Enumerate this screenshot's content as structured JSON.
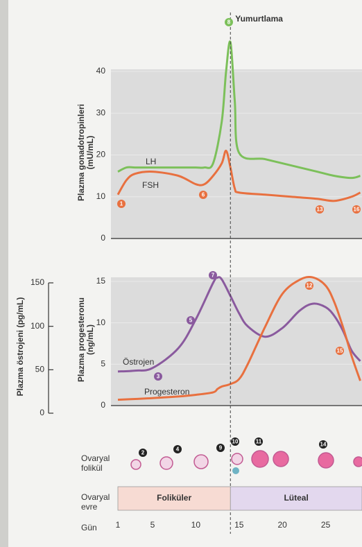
{
  "chart_data": [
    {
      "type": "line",
      "y_label": [
        "Plazma gonadotropinleri",
        "(mU/mL)"
      ],
      "x": [
        1,
        2,
        3,
        5,
        8,
        10,
        11,
        12,
        13,
        13.5,
        14,
        14.5,
        15,
        18,
        21,
        24,
        26,
        28,
        29
      ],
      "xlim": [
        0.2,
        29.2
      ],
      "ylim": [
        0,
        40
      ],
      "yticks": [
        0,
        10,
        20,
        30,
        40
      ],
      "series": [
        {
          "name": "LH",
          "color": "#7cc05a",
          "values": [
            16,
            17,
            17,
            17,
            17,
            17,
            17,
            18,
            28,
            40,
            47,
            33,
            20.5,
            19,
            17.5,
            16,
            15,
            14.5,
            15
          ]
        },
        {
          "name": "FSH",
          "color": "#e8703f",
          "values": [
            10.5,
            14,
            15.5,
            16,
            15,
            13,
            13,
            15,
            18,
            21,
            17,
            12,
            11,
            10.5,
            10,
            9.5,
            9,
            10,
            11
          ]
        }
      ],
      "annotation": {
        "text": "Yumurtlama",
        "x": 14
      },
      "markers": [
        "1",
        "6",
        "8",
        "13",
        "16"
      ]
    },
    {
      "type": "line",
      "y_label": [
        "Plazma progesteronu",
        "(ng/mL)"
      ],
      "y2_label": "Plazma östrojeni (pg/mL)",
      "x": [
        1,
        3,
        5,
        8,
        10,
        12,
        12.5,
        13,
        14,
        15,
        16,
        18,
        20,
        22,
        23.5,
        25,
        26,
        27,
        28,
        29
      ],
      "xlim": [
        0.2,
        29.2
      ],
      "ylim": [
        0,
        15
      ],
      "yticks": [
        0,
        5,
        10,
        15
      ],
      "y2lim": [
        0,
        150
      ],
      "y2ticks": [
        0,
        50,
        100,
        150
      ],
      "series": [
        {
          "name": "Östrojen",
          "color": "#8a5a9e",
          "axis": "y2",
          "values": [
            48,
            49,
            52,
            75,
            108,
            150,
            156,
            154,
            135,
            115,
            100,
            88,
            98,
            118,
            126,
            122,
            112,
            95,
            72,
            60
          ]
        },
        {
          "name": "Progesteron",
          "color": "#e8703f",
          "values": [
            0.7,
            0.8,
            0.9,
            1.1,
            1.3,
            1.6,
            2,
            2.3,
            2.6,
            3.2,
            5,
            9.5,
            13.5,
            15.2,
            15.5,
            14.5,
            12.5,
            9.5,
            6,
            3
          ]
        }
      ],
      "markers": [
        "3",
        "5",
        "7",
        "12",
        "15"
      ]
    }
  ],
  "ovary": {
    "follicle_label": [
      "Ovaryal",
      "folikül"
    ],
    "follicle_markers": [
      "2",
      "4",
      "9",
      "10",
      "11",
      "14"
    ],
    "phase_label": [
      "Ovaryal",
      "evre"
    ],
    "phases": [
      {
        "label": "Foliküler",
        "start": 1,
        "end": 14,
        "color": "#f7dbd3"
      },
      {
        "label": "Lüteal",
        "start": 14,
        "end": 29.2,
        "color": "#e3d8ee"
      }
    ]
  },
  "day_axis": {
    "label": "Gün",
    "ticks": [
      1,
      5,
      10,
      15,
      20,
      25
    ]
  }
}
